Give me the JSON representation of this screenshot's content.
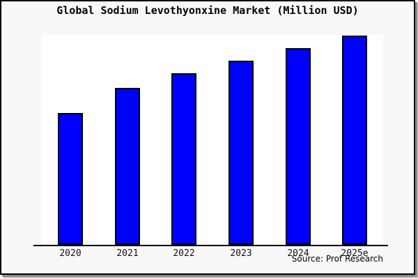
{
  "window": {
    "background_color": "#f8f8f8",
    "frame_border_color": "#000000",
    "shadow_color": "#8c8c8c",
    "plot_background_color": "#ffffff"
  },
  "chart_data": {
    "type": "bar",
    "title": "Global Sodium Levothyonxine Market (Million USD)",
    "categories": [
      "2020",
      "2021",
      "2022",
      "2023",
      "2024",
      "2025e"
    ],
    "values": [
      63,
      75,
      82,
      88,
      94,
      100
    ],
    "values_note": "no y-axis or data labels shown; values estimated relative to tallest bar (2025e = 100)",
    "xlabel": "",
    "ylabel": "",
    "ylim": [
      0,
      100.5
    ],
    "grid": false,
    "legend": false,
    "y_axis_visible": false,
    "bar_color": "#0000ff",
    "bar_border_color": "#000000",
    "axis_color": "#000000"
  },
  "source": {
    "text": "Source: Prof Research"
  }
}
